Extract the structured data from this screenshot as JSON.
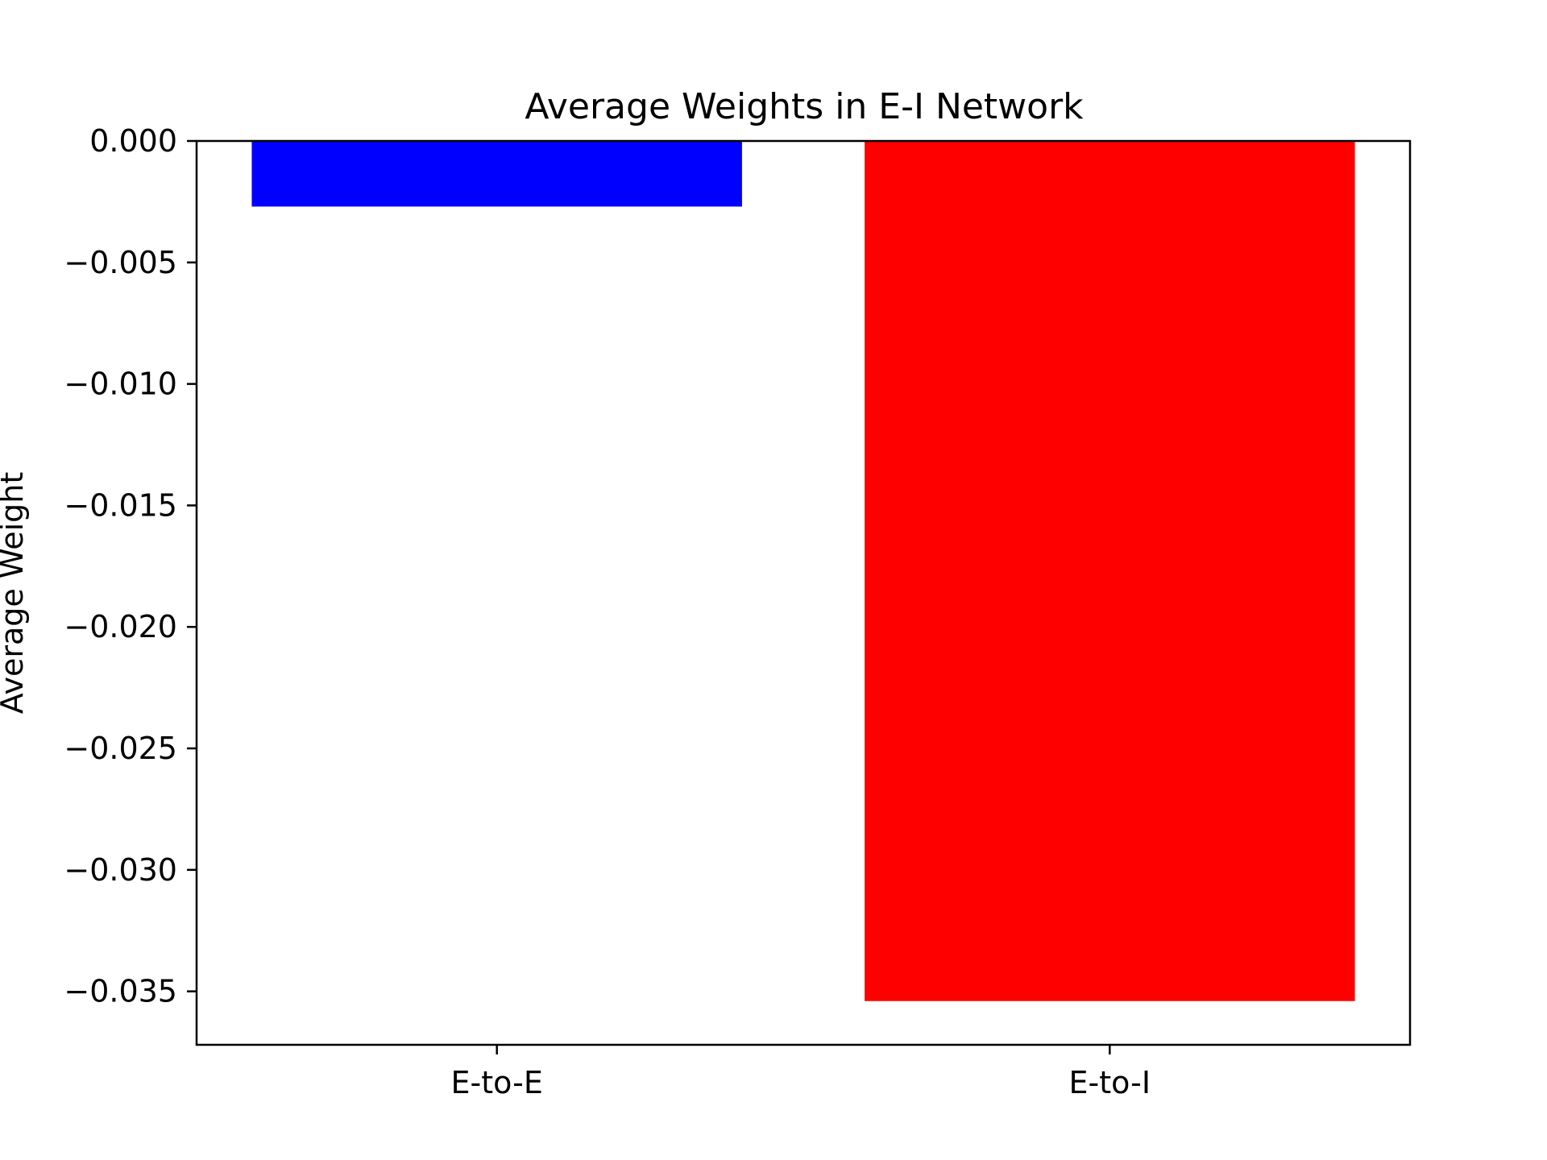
{
  "chart_data": {
    "type": "bar",
    "title": "Average Weights in E-I Network",
    "xlabel": "",
    "ylabel": "Average Weight",
    "categories": [
      "E-to-E",
      "E-to-I"
    ],
    "values": [
      -0.0027,
      -0.0354
    ],
    "colors": [
      "#0000ff",
      "#ff0000"
    ],
    "ylim": [
      -0.0372,
      0.0
    ],
    "yticks": [
      0.0,
      -0.005,
      -0.01,
      -0.015,
      -0.02,
      -0.025,
      -0.03,
      -0.035
    ],
    "ytick_labels": [
      "0.000",
      "−0.005",
      "−0.010",
      "−0.015",
      "−0.020",
      "−0.025",
      "−0.030",
      "−0.035"
    ],
    "grid": false,
    "legend": "none"
  }
}
